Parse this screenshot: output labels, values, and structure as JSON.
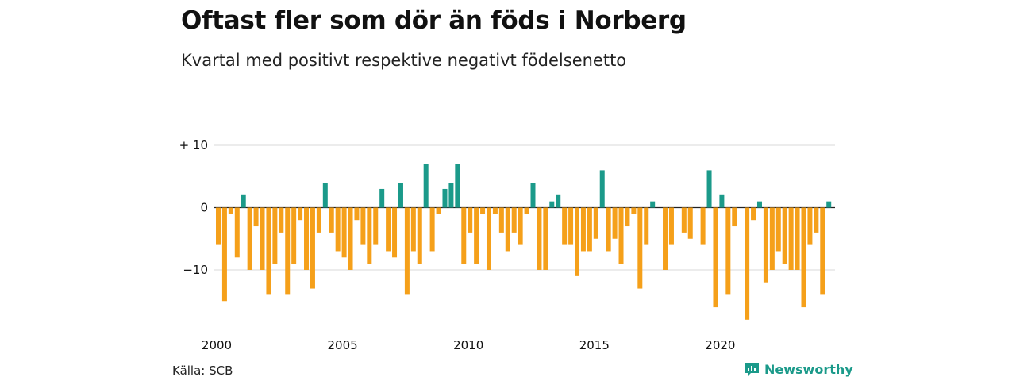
{
  "title": "Oftast fler som dör än föds i Norberg",
  "subtitle": "Kvartal med positivt respektive negativt födelsenetto",
  "source": "Källa: SCB",
  "brand": {
    "name": "Newsworthy"
  },
  "colors": {
    "positive": "#1b9a8a",
    "negative": "#f5a01a",
    "grid": "#d9d9d9",
    "zero": "#222222"
  },
  "chart_data": {
    "type": "bar",
    "ylim": [
      -18,
      10
    ],
    "y_ticks": [
      {
        "value": 10,
        "label": "+ 10"
      },
      {
        "value": 0,
        "label": "0"
      },
      {
        "value": -10,
        "label": "−10"
      }
    ],
    "x_ticks": [
      "2000",
      "2005",
      "2010",
      "2015",
      "2020"
    ],
    "x_start": "2000 Q1",
    "values": [
      -6,
      -15,
      -1,
      -8,
      2,
      -10,
      -3,
      -10,
      -14,
      -9,
      -4,
      -14,
      -9,
      -2,
      -10,
      -13,
      -4,
      4,
      -4,
      -7,
      -8,
      -10,
      -2,
      -6,
      -9,
      -6,
      3,
      -7,
      -8,
      4,
      -14,
      -7,
      -9,
      7,
      -7,
      -1,
      3,
      4,
      7,
      -9,
      -4,
      -9,
      -1,
      -10,
      -1,
      -4,
      -7,
      -4,
      -6,
      -1,
      4,
      -10,
      -10,
      1,
      2,
      -6,
      -6,
      -11,
      -7,
      -7,
      -5,
      6,
      -7,
      -5,
      -9,
      -3,
      -1,
      -13,
      -6,
      1,
      0,
      -10,
      -6,
      0,
      -4,
      -5,
      0,
      -6,
      6,
      -16,
      2,
      -14,
      -3,
      0,
      -18,
      -2,
      1,
      -12,
      -10,
      -7,
      -9,
      -10,
      -10,
      -16,
      -6,
      -4,
      -14,
      1
    ]
  }
}
